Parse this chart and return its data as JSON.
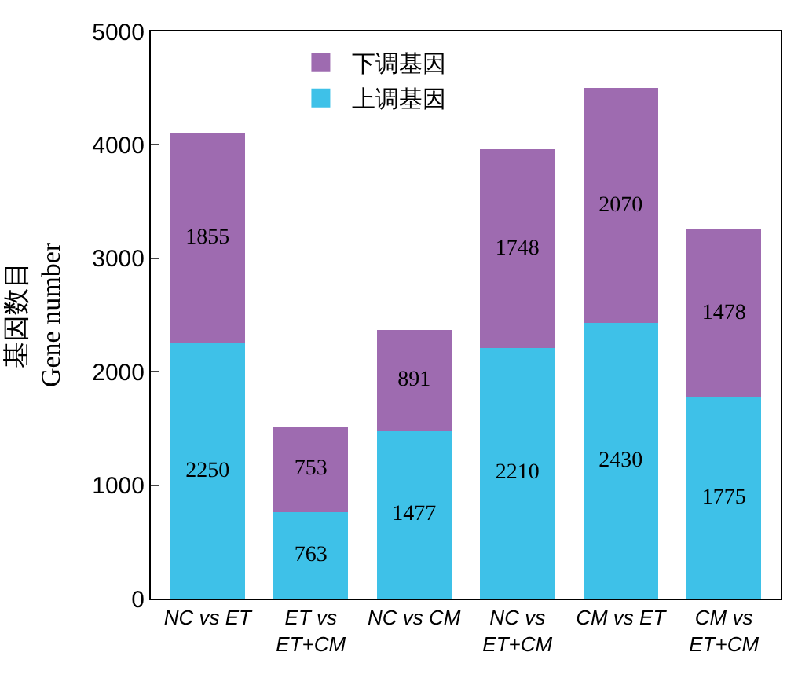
{
  "chart_data": {
    "type": "bar",
    "stacked": true,
    "ylabel": "基因数目\nGene number",
    "categories": [
      "NC vs ET",
      "ET vs\nET+CM",
      "NC vs CM",
      "NC vs\nET+CM",
      "CM vs ET",
      "CM vs\nET+CM"
    ],
    "series": [
      {
        "name": "上调基因",
        "color": "#3ec1e8",
        "values": [
          2250,
          763,
          1477,
          2210,
          2430,
          1775
        ]
      },
      {
        "name": "下调基因",
        "color": "#9e6bb0",
        "values": [
          1855,
          753,
          891,
          1748,
          2070,
          1478
        ]
      }
    ],
    "ylim": [
      0,
      5000
    ],
    "yticks": [
      0,
      1000,
      2000,
      3000,
      4000,
      5000
    ],
    "legend": "top left",
    "data_labels": true
  }
}
